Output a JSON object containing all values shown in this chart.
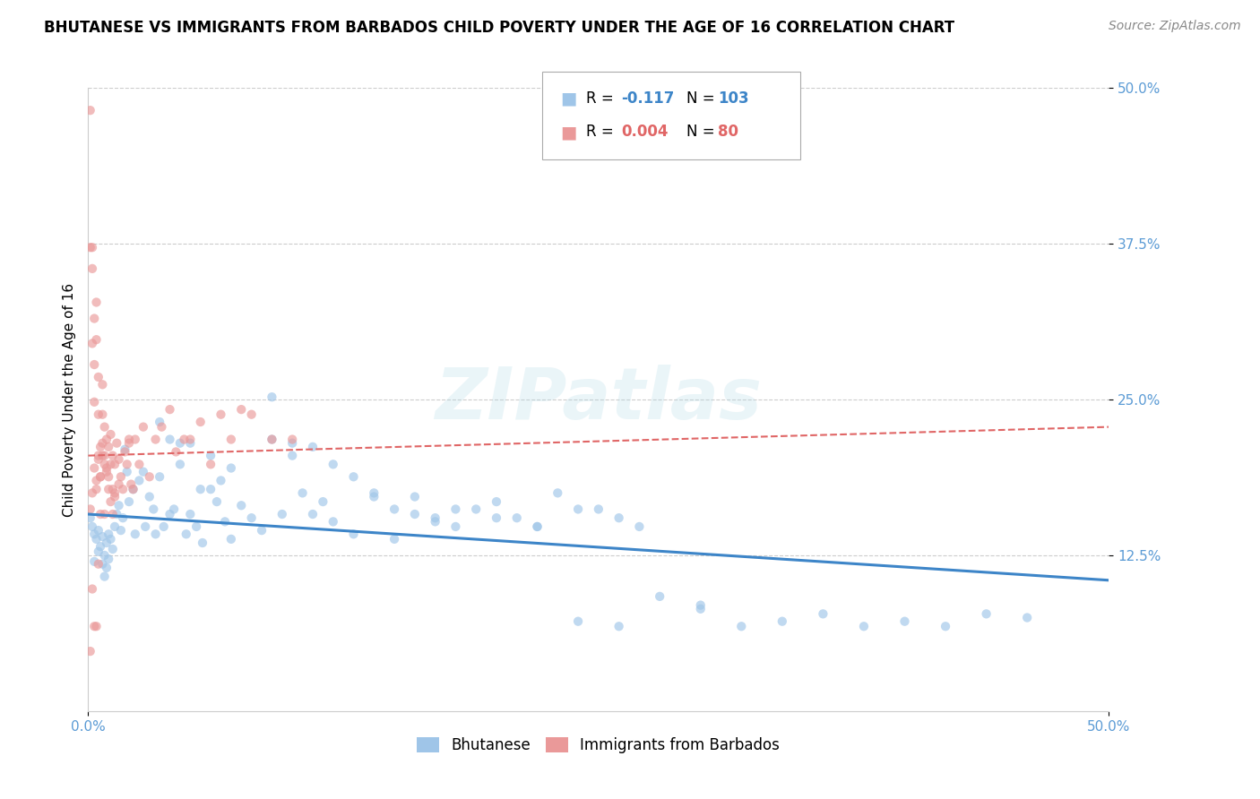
{
  "title": "BHUTANESE VS IMMIGRANTS FROM BARBADOS CHILD POVERTY UNDER THE AGE OF 16 CORRELATION CHART",
  "source": "Source: ZipAtlas.com",
  "ylabel": "Child Poverty Under the Age of 16",
  "xlim": [
    0.0,
    0.5
  ],
  "ylim": [
    0.0,
    0.5
  ],
  "xtick_labels": [
    "0.0%",
    "50.0%"
  ],
  "xtick_positions": [
    0.0,
    0.5
  ],
  "ytick_labels": [
    "50.0%",
    "37.5%",
    "25.0%",
    "12.5%"
  ],
  "ytick_positions": [
    0.5,
    0.375,
    0.25,
    0.125
  ],
  "grid_color": "#cccccc",
  "blue_color": "#9fc5e8",
  "pink_color": "#ea9999",
  "blue_line_color": "#3d85c8",
  "pink_line_color": "#e06666",
  "legend_R_blue": "-0.117",
  "legend_N_blue": "103",
  "legend_R_pink": "0.004",
  "legend_N_pink": "80",
  "blue_line_y_start": 0.158,
  "blue_line_y_end": 0.105,
  "pink_line_y_start": 0.205,
  "pink_line_y_end": 0.228,
  "title_fontsize": 12,
  "source_fontsize": 10,
  "axis_label_fontsize": 11,
  "tick_fontsize": 11,
  "marker_size": 55,
  "alpha": 0.65,
  "background_color": "#ffffff",
  "tick_color": "#5b9bd5",
  "blue_scatter_x": [
    0.001,
    0.002,
    0.003,
    0.003,
    0.004,
    0.005,
    0.005,
    0.006,
    0.007,
    0.007,
    0.008,
    0.008,
    0.009,
    0.009,
    0.01,
    0.01,
    0.011,
    0.012,
    0.013,
    0.014,
    0.015,
    0.016,
    0.017,
    0.018,
    0.019,
    0.02,
    0.022,
    0.023,
    0.025,
    0.027,
    0.028,
    0.03,
    0.032,
    0.033,
    0.035,
    0.037,
    0.04,
    0.042,
    0.045,
    0.048,
    0.05,
    0.053,
    0.056,
    0.06,
    0.063,
    0.067,
    0.07,
    0.075,
    0.08,
    0.085,
    0.09,
    0.095,
    0.1,
    0.105,
    0.11,
    0.115,
    0.12,
    0.13,
    0.14,
    0.15,
    0.16,
    0.17,
    0.18,
    0.19,
    0.2,
    0.21,
    0.22,
    0.23,
    0.24,
    0.25,
    0.26,
    0.27,
    0.28,
    0.3,
    0.32,
    0.34,
    0.36,
    0.38,
    0.4,
    0.42,
    0.44,
    0.46,
    0.035,
    0.04,
    0.045,
    0.05,
    0.055,
    0.06,
    0.065,
    0.07,
    0.09,
    0.1,
    0.11,
    0.12,
    0.13,
    0.14,
    0.15,
    0.16,
    0.17,
    0.18,
    0.2,
    0.22,
    0.24,
    0.26,
    0.3
  ],
  "blue_scatter_y": [
    0.155,
    0.148,
    0.142,
    0.12,
    0.138,
    0.145,
    0.128,
    0.132,
    0.14,
    0.118,
    0.125,
    0.108,
    0.135,
    0.115,
    0.142,
    0.122,
    0.138,
    0.13,
    0.148,
    0.158,
    0.165,
    0.145,
    0.155,
    0.21,
    0.192,
    0.168,
    0.178,
    0.142,
    0.185,
    0.192,
    0.148,
    0.172,
    0.162,
    0.142,
    0.188,
    0.148,
    0.158,
    0.162,
    0.215,
    0.142,
    0.158,
    0.148,
    0.135,
    0.178,
    0.168,
    0.152,
    0.138,
    0.165,
    0.155,
    0.145,
    0.252,
    0.158,
    0.205,
    0.175,
    0.158,
    0.168,
    0.152,
    0.142,
    0.172,
    0.138,
    0.158,
    0.152,
    0.148,
    0.162,
    0.168,
    0.155,
    0.148,
    0.175,
    0.162,
    0.162,
    0.155,
    0.148,
    0.092,
    0.082,
    0.068,
    0.072,
    0.078,
    0.068,
    0.072,
    0.068,
    0.078,
    0.075,
    0.232,
    0.218,
    0.198,
    0.215,
    0.178,
    0.205,
    0.185,
    0.195,
    0.218,
    0.215,
    0.212,
    0.198,
    0.188,
    0.175,
    0.162,
    0.172,
    0.155,
    0.162,
    0.155,
    0.148,
    0.072,
    0.068,
    0.085
  ],
  "pink_scatter_x": [
    0.001,
    0.001,
    0.001,
    0.002,
    0.002,
    0.002,
    0.002,
    0.003,
    0.003,
    0.003,
    0.003,
    0.004,
    0.004,
    0.004,
    0.004,
    0.005,
    0.005,
    0.005,
    0.005,
    0.006,
    0.006,
    0.006,
    0.007,
    0.007,
    0.007,
    0.008,
    0.008,
    0.008,
    0.009,
    0.009,
    0.01,
    0.01,
    0.011,
    0.011,
    0.012,
    0.012,
    0.013,
    0.013,
    0.014,
    0.015,
    0.016,
    0.017,
    0.018,
    0.019,
    0.02,
    0.021,
    0.022,
    0.023,
    0.025,
    0.027,
    0.03,
    0.033,
    0.036,
    0.04,
    0.043,
    0.047,
    0.05,
    0.055,
    0.06,
    0.065,
    0.07,
    0.075,
    0.08,
    0.09,
    0.1,
    0.001,
    0.002,
    0.003,
    0.004,
    0.005,
    0.006,
    0.007,
    0.008,
    0.009,
    0.01,
    0.011,
    0.012,
    0.013,
    0.015,
    0.02
  ],
  "pink_scatter_y": [
    0.482,
    0.372,
    0.048,
    0.372,
    0.355,
    0.295,
    0.098,
    0.315,
    0.278,
    0.248,
    0.068,
    0.328,
    0.298,
    0.185,
    0.068,
    0.268,
    0.238,
    0.205,
    0.118,
    0.212,
    0.188,
    0.158,
    0.262,
    0.238,
    0.205,
    0.228,
    0.198,
    0.158,
    0.218,
    0.195,
    0.212,
    0.188,
    0.222,
    0.198,
    0.178,
    0.205,
    0.198,
    0.175,
    0.215,
    0.202,
    0.188,
    0.178,
    0.208,
    0.198,
    0.218,
    0.182,
    0.178,
    0.218,
    0.198,
    0.228,
    0.188,
    0.218,
    0.228,
    0.242,
    0.208,
    0.218,
    0.218,
    0.232,
    0.198,
    0.238,
    0.218,
    0.242,
    0.238,
    0.218,
    0.218,
    0.162,
    0.175,
    0.195,
    0.178,
    0.202,
    0.188,
    0.215,
    0.205,
    0.192,
    0.178,
    0.168,
    0.158,
    0.172,
    0.182,
    0.215
  ]
}
